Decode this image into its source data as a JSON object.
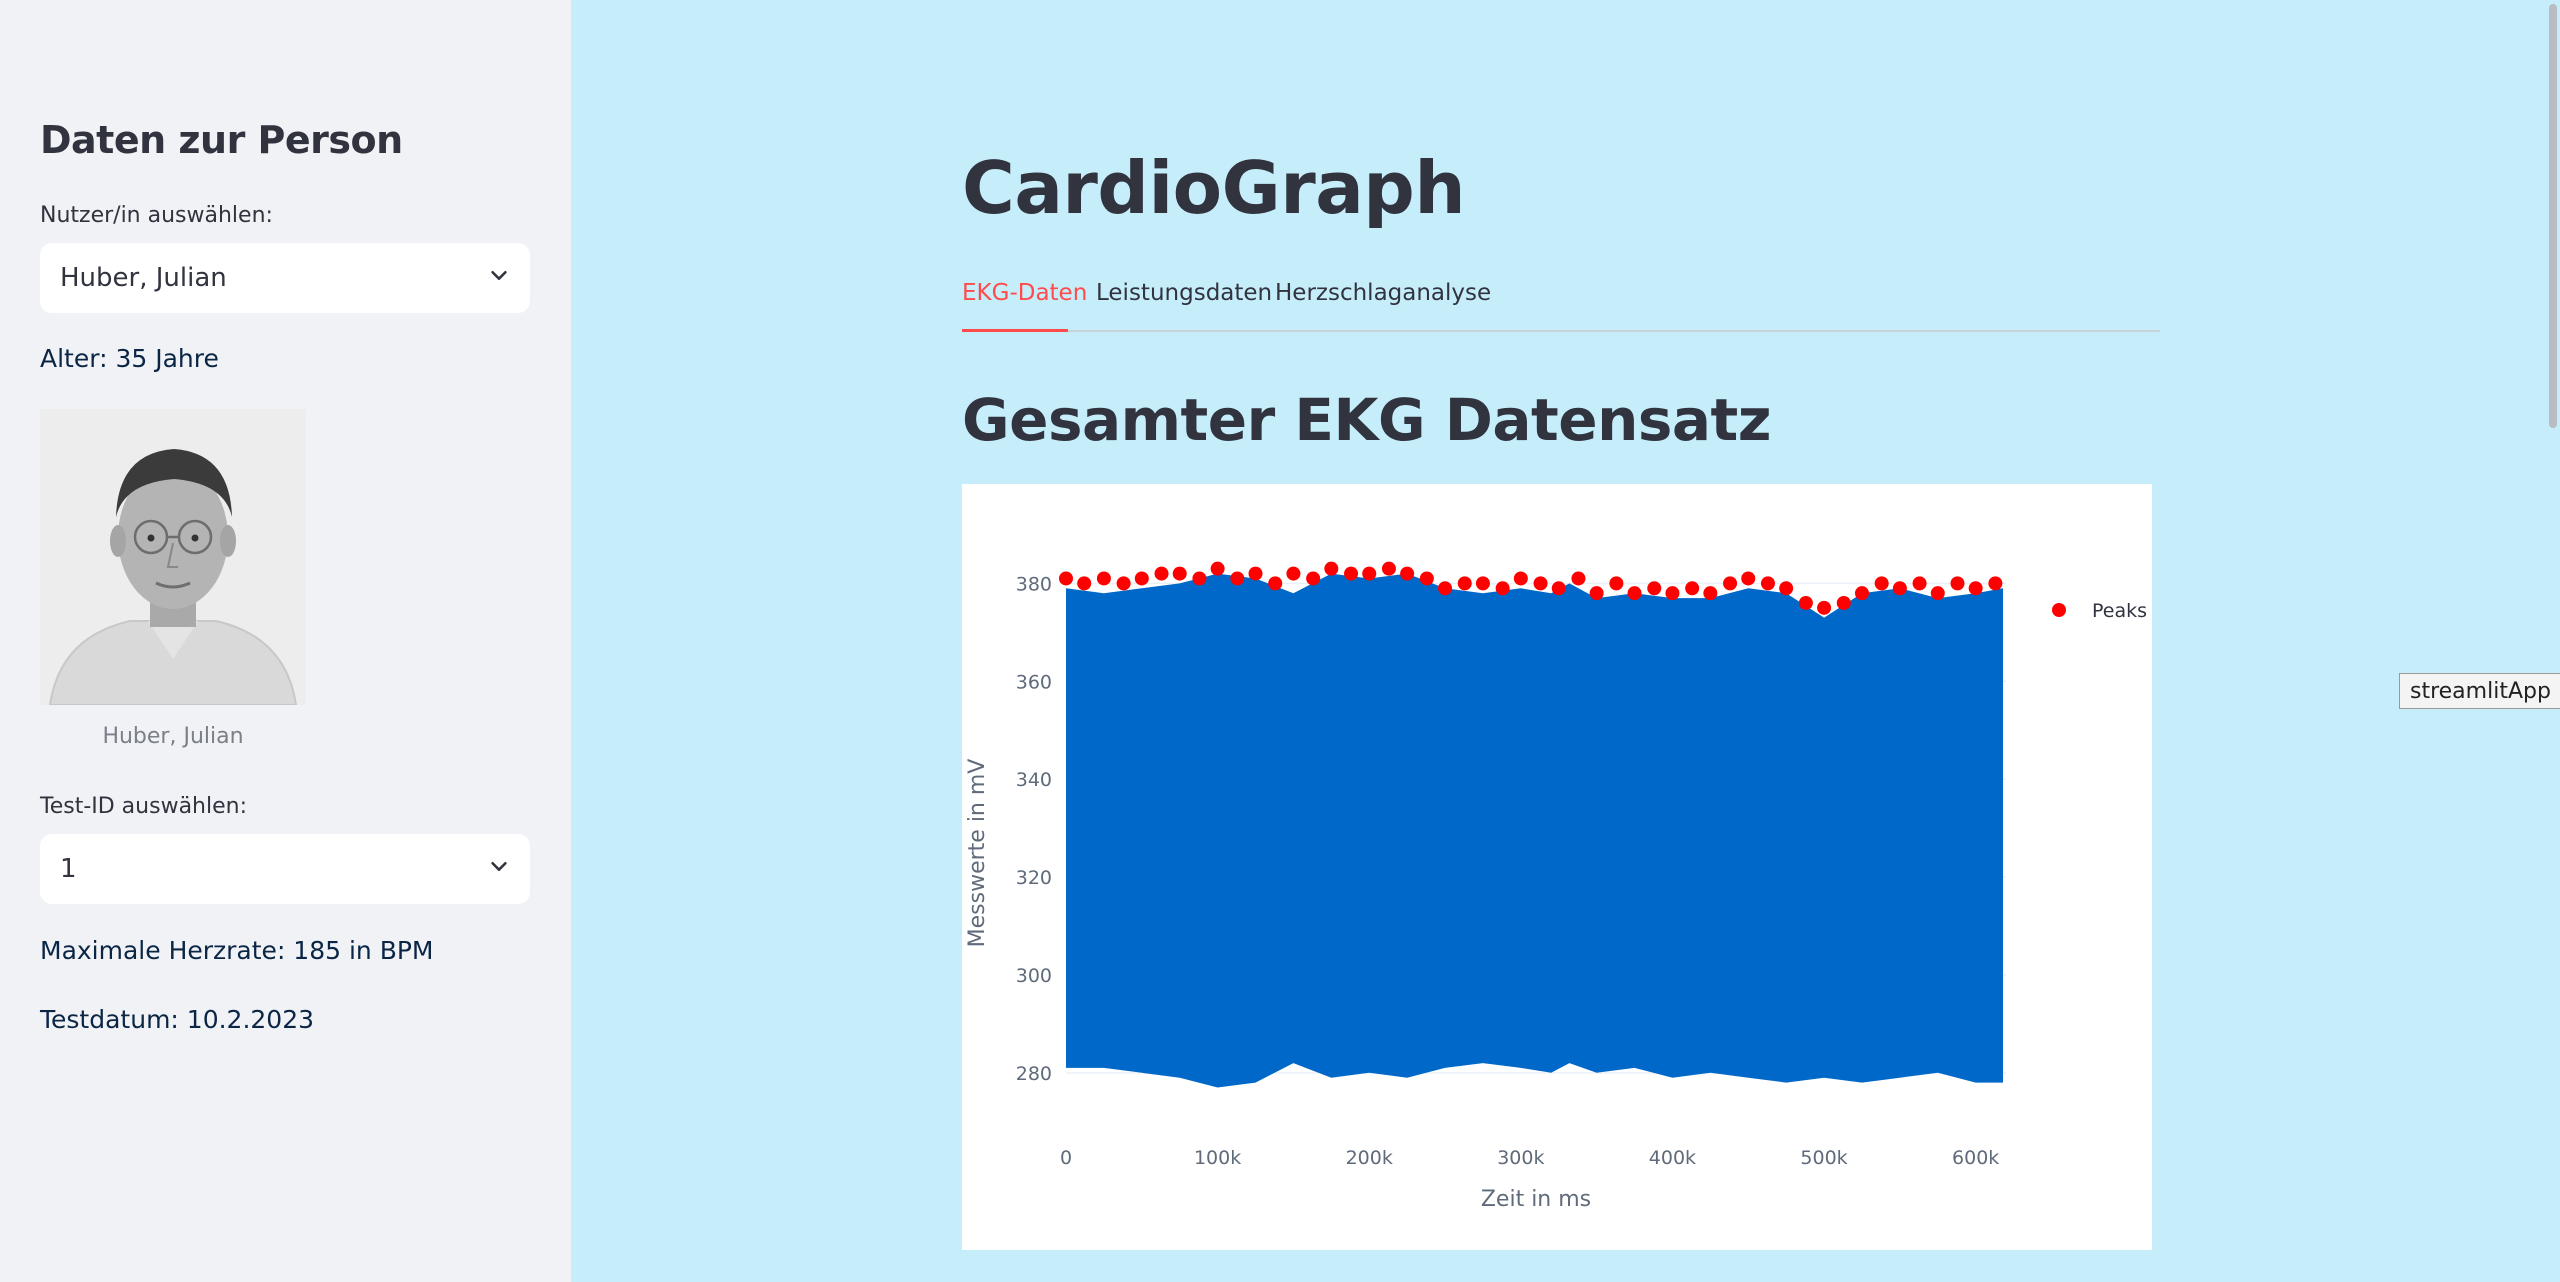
{
  "sidebar": {
    "title": "Daten zur Person",
    "user_label": "Nutzer/in auswählen:",
    "user_value": "Huber, Julian",
    "age_text": "Alter: 35 Jahre",
    "photo_caption": "Huber, Julian",
    "test_label": "Test-ID auswählen:",
    "test_value": "1",
    "max_hr_text": "Maximale Herzrate: 185 in BPM",
    "test_date_text": "Testdatum: 10.2.2023"
  },
  "main": {
    "title": "CardioGraph",
    "tabs": [
      {
        "label": "EKG-Daten",
        "active": true
      },
      {
        "label": "Leistungsdaten",
        "active": false
      },
      {
        "label": "Herzschlaganalyse",
        "active": false
      }
    ],
    "section_title": "Gesamter EKG Datensatz"
  },
  "tooltip": "streamlitApp",
  "colors": {
    "accent": "#ff4b4b",
    "main_bg": "#c6eefa",
    "sidebar_bg": "#f0f2f6",
    "signal": "#0068c9",
    "peaks": "#ff0000"
  },
  "chart_data": {
    "type": "line",
    "title": "",
    "xlabel": "Zeit in ms",
    "ylabel": "Messwerte in mV",
    "xlim": [
      0,
      620000
    ],
    "ylim": [
      272,
      386
    ],
    "x_ticks": [
      0,
      100000,
      200000,
      300000,
      400000,
      500000,
      600000
    ],
    "x_tick_labels": [
      "0",
      "100k",
      "200k",
      "300k",
      "400k",
      "500k",
      "600k"
    ],
    "y_ticks": [
      280,
      300,
      320,
      340,
      360,
      380
    ],
    "y_tick_labels": [
      "280",
      "300",
      "320",
      "340",
      "360",
      "380"
    ],
    "legend": {
      "position": "top-right",
      "entries": [
        "Peaks"
      ]
    },
    "series": [
      {
        "name": "",
        "style": "line",
        "color": "#0068c9",
        "x_range": [
          0,
          618000
        ],
        "upper_envelope": {
          "x": [
            0,
            25000,
            50000,
            75000,
            100000,
            125000,
            150000,
            175000,
            200000,
            225000,
            250000,
            275000,
            300000,
            320000,
            332000,
            350000,
            375000,
            400000,
            425000,
            450000,
            475000,
            500000,
            525000,
            550000,
            575000,
            600000,
            618000
          ],
          "y": [
            379,
            378,
            379,
            380,
            382,
            381,
            378,
            382,
            381,
            382,
            379,
            378,
            379,
            378,
            380,
            377,
            378,
            377,
            377,
            379,
            378,
            373,
            378,
            379,
            377,
            378,
            379
          ]
        },
        "lower_envelope": {
          "x": [
            0,
            25000,
            50000,
            75000,
            100000,
            125000,
            150000,
            175000,
            200000,
            225000,
            250000,
            275000,
            300000,
            320000,
            332000,
            350000,
            375000,
            400000,
            425000,
            450000,
            475000,
            500000,
            525000,
            550000,
            575000,
            600000,
            618000
          ],
          "y": [
            281,
            281,
            280,
            279,
            277,
            278,
            282,
            279,
            280,
            279,
            281,
            282,
            281,
            280,
            282,
            280,
            281,
            279,
            280,
            279,
            278,
            279,
            278,
            279,
            280,
            278,
            278
          ]
        }
      },
      {
        "name": "Peaks",
        "style": "markers",
        "color": "#ff0000",
        "x": [
          0,
          12000,
          25000,
          38000,
          50000,
          63000,
          75000,
          88000,
          100000,
          113000,
          125000,
          138000,
          150000,
          163000,
          175000,
          188000,
          200000,
          213000,
          225000,
          238000,
          250000,
          263000,
          275000,
          288000,
          300000,
          313000,
          325000,
          338000,
          350000,
          363000,
          375000,
          388000,
          400000,
          413000,
          425000,
          438000,
          450000,
          463000,
          475000,
          488000,
          500000,
          513000,
          525000,
          538000,
          550000,
          563000,
          575000,
          588000,
          600000,
          613000
        ],
        "y": [
          381,
          380,
          381,
          380,
          381,
          382,
          382,
          381,
          383,
          381,
          382,
          380,
          382,
          381,
          383,
          382,
          382,
          383,
          382,
          381,
          379,
          380,
          380,
          379,
          381,
          380,
          379,
          381,
          378,
          380,
          378,
          379,
          378,
          379,
          378,
          380,
          381,
          380,
          379,
          376,
          375,
          376,
          378,
          380,
          379,
          380,
          378,
          380,
          379,
          380
        ]
      }
    ]
  }
}
